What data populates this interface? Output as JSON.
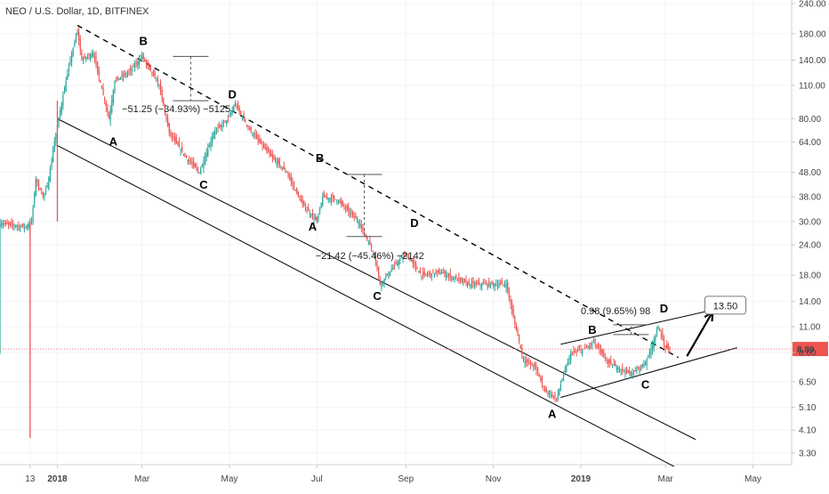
{
  "chart_data": {
    "type": "candlestick",
    "title": "NEO / U.S. Dollar, 1D, BITFINEX",
    "y_scale": "log",
    "ylim": [
      2.95,
      240
    ],
    "xlim": [
      "2017-11-22",
      "2019-05-28"
    ],
    "grid": true,
    "colors": {
      "up": "#26a69a",
      "down": "#ef5350",
      "price_line": "#ef5350",
      "axis_text": "#444444"
    },
    "x_ticks": [
      {
        "date": "2017-12-13",
        "label": "13"
      },
      {
        "date": "2018-01-01",
        "label": "2018"
      },
      {
        "date": "2018-03-01",
        "label": "Mar"
      },
      {
        "date": "2018-05-01",
        "label": "May"
      },
      {
        "date": "2018-07-01",
        "label": "Jul"
      },
      {
        "date": "2018-09-01",
        "label": "Sep"
      },
      {
        "date": "2018-11-01",
        "label": "Nov"
      },
      {
        "date": "2019-01-01",
        "label": "2019"
      },
      {
        "date": "2019-03-01",
        "label": "Mar"
      },
      {
        "date": "2019-05-01",
        "label": "May"
      }
    ],
    "y_ticks": [
      240,
      180,
      140,
      110,
      80,
      64,
      48,
      38,
      30,
      24,
      18,
      14,
      11,
      8.6,
      6.5,
      5.1,
      4.1,
      3.3
    ],
    "y_tick_labels": [
      "240.00",
      "180.00",
      "140.00",
      "110.00",
      "80.00",
      "64.00",
      "48.00",
      "38.00",
      "30.00",
      "24.00",
      "18.00",
      "14.00",
      "11.00",
      "8.60",
      "6.50",
      "5.10",
      "4.10",
      "3.30"
    ],
    "price_path": [
      [
        "2017-11-22",
        29.5
      ],
      [
        "2017-12-01",
        29.0
      ],
      [
        "2017-12-10",
        28.5
      ],
      [
        "2017-12-14",
        30.0
      ],
      [
        "2017-12-17",
        45.0
      ],
      [
        "2017-12-22",
        38.0
      ],
      [
        "2017-12-25",
        42.0
      ],
      [
        "2017-12-31",
        70.0
      ],
      [
        "2018-01-05",
        100.0
      ],
      [
        "2018-01-10",
        140.0
      ],
      [
        "2018-01-15",
        185.0
      ],
      [
        "2018-01-18",
        140.0
      ],
      [
        "2018-01-26",
        150.0
      ],
      [
        "2018-02-06",
        80.0
      ],
      [
        "2018-02-10",
        115.0
      ],
      [
        "2018-02-20",
        125.0
      ],
      [
        "2018-03-01",
        145.0
      ],
      [
        "2018-03-13",
        110.0
      ],
      [
        "2018-03-20",
        70.0
      ],
      [
        "2018-04-01",
        55.0
      ],
      [
        "2018-04-10",
        48.0
      ],
      [
        "2018-04-20",
        70.0
      ],
      [
        "2018-04-30",
        80.0
      ],
      [
        "2018-05-05",
        92.0
      ],
      [
        "2018-05-15",
        72.0
      ],
      [
        "2018-05-31",
        55.0
      ],
      [
        "2018-06-10",
        48.0
      ],
      [
        "2018-06-20",
        36.0
      ],
      [
        "2018-07-01",
        30.0
      ],
      [
        "2018-07-05",
        38.0
      ],
      [
        "2018-07-15",
        37.0
      ],
      [
        "2018-07-30",
        30.0
      ],
      [
        "2018-08-10",
        22.0
      ],
      [
        "2018-08-14",
        16.5
      ],
      [
        "2018-08-25",
        20.0
      ],
      [
        "2018-09-01",
        22.0
      ],
      [
        "2018-09-12",
        18.0
      ],
      [
        "2018-09-25",
        18.5
      ],
      [
        "2018-10-15",
        16.5
      ],
      [
        "2018-11-01",
        16.5
      ],
      [
        "2018-11-10",
        16.5
      ],
      [
        "2018-11-15",
        12.0
      ],
      [
        "2018-11-22",
        8.0
      ],
      [
        "2018-11-30",
        7.5
      ],
      [
        "2018-12-07",
        6.0
      ],
      [
        "2018-12-15",
        5.5
      ],
      [
        "2018-12-20",
        7.0
      ],
      [
        "2018-12-25",
        8.5
      ],
      [
        "2019-01-05",
        9.0
      ],
      [
        "2019-01-10",
        9.5
      ],
      [
        "2019-01-20",
        7.8
      ],
      [
        "2019-02-05",
        7.0
      ],
      [
        "2019-02-15",
        7.8
      ],
      [
        "2019-02-20",
        9.3
      ],
      [
        "2019-02-24",
        11.0
      ],
      [
        "2019-03-01",
        9.0
      ],
      [
        "2019-03-04",
        8.89
      ]
    ],
    "spikes": [
      {
        "date": "2017-12-13",
        "low": 3.8,
        "high": 30.0
      },
      {
        "date": "2018-01-01",
        "low": 30.0,
        "high": 95.0
      }
    ],
    "last_price": {
      "value": 8.89,
      "label": "8.89"
    },
    "trend_lines": [
      {
        "style": "dashed",
        "from": [
          "2018-01-15",
          195.0
        ],
        "to": [
          "2019-03-10",
          8.2
        ]
      },
      {
        "style": "solid",
        "from": [
          "2018-01-01",
          80.0
        ],
        "to": [
          "2019-03-22",
          3.75
        ]
      },
      {
        "style": "solid",
        "from": [
          "2018-01-01",
          62.0
        ],
        "to": [
          "2019-03-07",
          2.9
        ]
      },
      {
        "style": "solid",
        "from": [
          "2018-12-18",
          9.3
        ],
        "to": [
          "2019-04-20",
          13.6
        ]
      },
      {
        "style": "solid",
        "from": [
          "2018-12-18",
          5.6
        ],
        "to": [
          "2019-04-20",
          9.0
        ]
      }
    ],
    "wave_labels": [
      {
        "text": "A",
        "date": "2018-02-09",
        "price": 62.0
      },
      {
        "text": "B",
        "date": "2018-03-02",
        "price": 162.0
      },
      {
        "text": "C",
        "date": "2018-04-13",
        "price": 41.0
      },
      {
        "text": "D",
        "date": "2018-05-03",
        "price": 97.0
      },
      {
        "text": "B",
        "date": "2018-07-03",
        "price": 53.0
      },
      {
        "text": "A",
        "date": "2018-06-28",
        "price": 27.5
      },
      {
        "text": "D",
        "date": "2018-09-07",
        "price": 28.5
      },
      {
        "text": "C",
        "date": "2018-08-12",
        "price": 14.2
      },
      {
        "text": "B",
        "date": "2019-01-09",
        "price": 10.3
      },
      {
        "text": "D",
        "date": "2019-02-28",
        "price": 12.6
      },
      {
        "text": "C",
        "date": "2019-02-15",
        "price": 6.1
      },
      {
        "text": "A",
        "date": "2018-12-12",
        "price": 4.6
      }
    ],
    "measurements": [
      {
        "text": "−51.25 (−34.93%) −5125",
        "label_date": "2018-02-15",
        "label_price": 85.0,
        "line_date": "2018-04-04",
        "from_price": 145.0,
        "to_price": 95.0
      },
      {
        "text": "−21.42 (−45.46%) −2142",
        "label_date": "2018-06-30",
        "label_price": 21.0,
        "line_date": "2018-08-03",
        "from_price": 47.0,
        "to_price": 26.0
      },
      {
        "text": "0.98 (9.65%) 98",
        "label_date": "2019-01-01",
        "label_price": 12.4,
        "line_date": "2019-02-05",
        "from_price": 10.2,
        "to_price": 11.2
      }
    ],
    "target": {
      "label": "13.50",
      "value": 13.5,
      "date": "2019-04-18"
    },
    "arrow": {
      "from": [
        "2019-03-16",
        8.3
      ],
      "to": [
        "2019-04-03",
        12.7
      ]
    }
  }
}
